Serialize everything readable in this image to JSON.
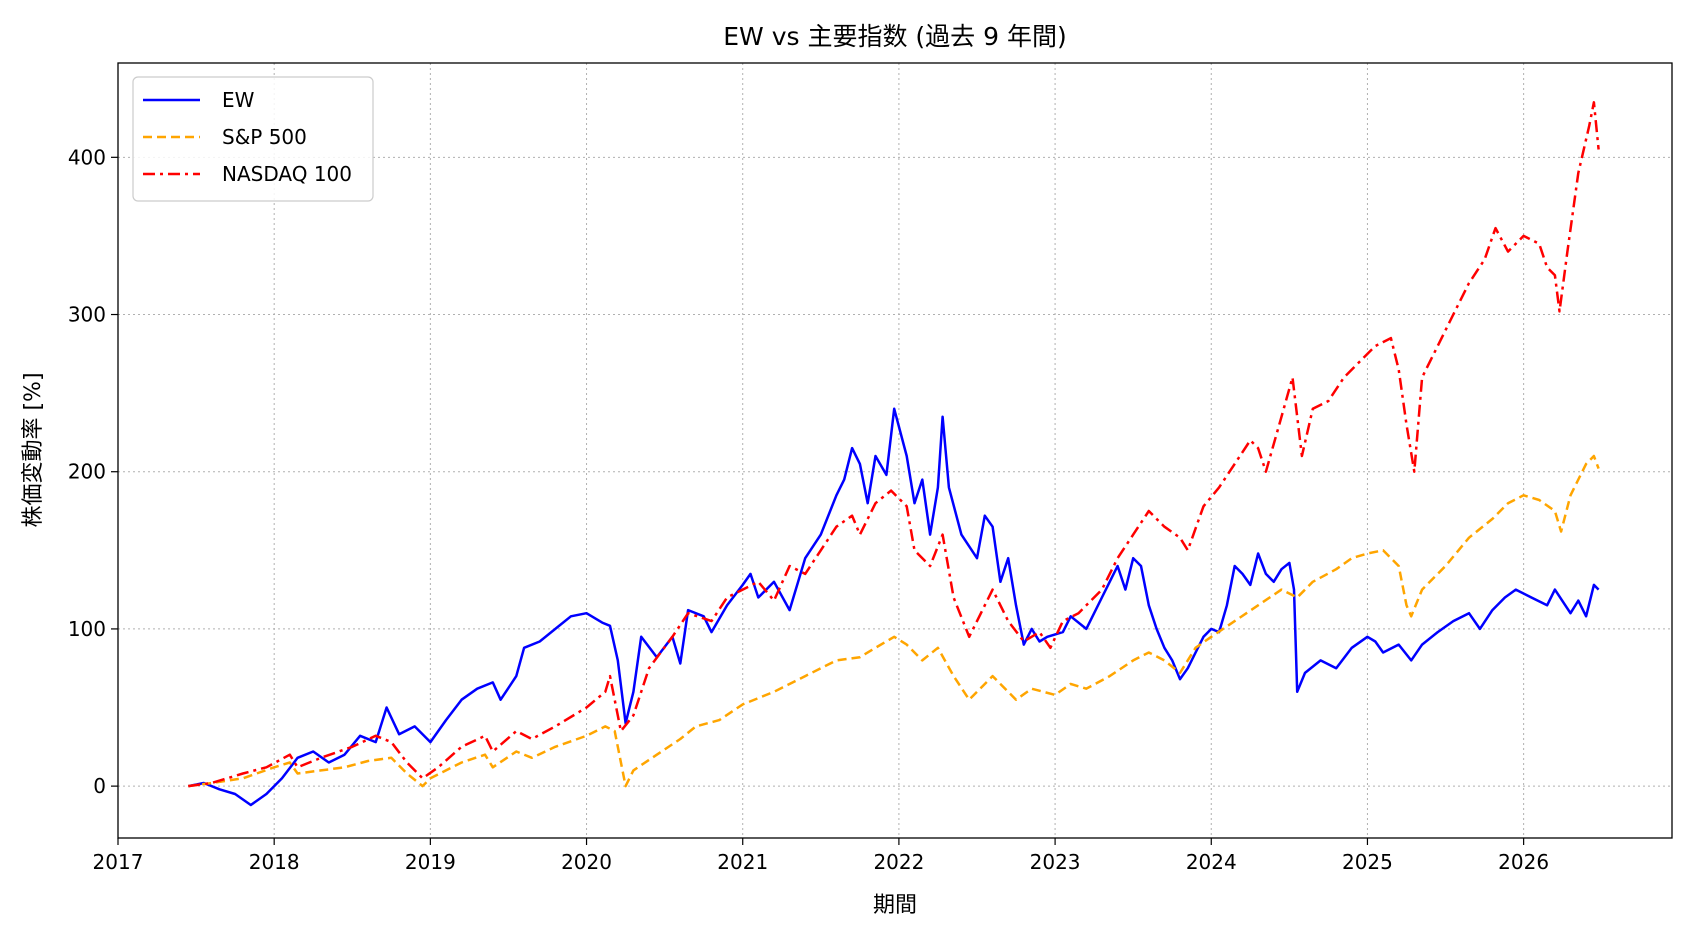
{
  "chart_data": {
    "type": "line",
    "title": "EW vs 主要指数 (過去 9 年間)",
    "xlabel": "期間",
    "ylabel": "株価変動率 [%]",
    "xlim": [
      2017.0,
      2026.95
    ],
    "ylim": [
      -33,
      460
    ],
    "x_ticks": [
      "2017",
      "2018",
      "2019",
      "2020",
      "2021",
      "2022",
      "2023",
      "2024",
      "2025",
      "2026"
    ],
    "y_ticks": [
      "0",
      "100",
      "200",
      "300",
      "400"
    ],
    "grid": true,
    "legend_position": "top-left",
    "series": [
      {
        "name": "EW",
        "color": "#0000ff",
        "style": "solid",
        "points": [
          [
            2017.45,
            0
          ],
          [
            2017.55,
            2
          ],
          [
            2017.65,
            -2
          ],
          [
            2017.75,
            -5
          ],
          [
            2017.85,
            -12
          ],
          [
            2017.95,
            -5
          ],
          [
            2018.05,
            5
          ],
          [
            2018.15,
            18
          ],
          [
            2018.25,
            22
          ],
          [
            2018.35,
            15
          ],
          [
            2018.45,
            20
          ],
          [
            2018.55,
            32
          ],
          [
            2018.65,
            28
          ],
          [
            2018.72,
            50
          ],
          [
            2018.8,
            33
          ],
          [
            2018.9,
            38
          ],
          [
            2019.0,
            28
          ],
          [
            2019.1,
            42
          ],
          [
            2019.2,
            55
          ],
          [
            2019.3,
            62
          ],
          [
            2019.4,
            66
          ],
          [
            2019.45,
            55
          ],
          [
            2019.55,
            70
          ],
          [
            2019.6,
            88
          ],
          [
            2019.7,
            92
          ],
          [
            2019.8,
            100
          ],
          [
            2019.9,
            108
          ],
          [
            2020.0,
            110
          ],
          [
            2020.1,
            104
          ],
          [
            2020.15,
            102
          ],
          [
            2020.2,
            80
          ],
          [
            2020.25,
            40
          ],
          [
            2020.3,
            60
          ],
          [
            2020.35,
            95
          ],
          [
            2020.45,
            82
          ],
          [
            2020.55,
            95
          ],
          [
            2020.6,
            78
          ],
          [
            2020.65,
            112
          ],
          [
            2020.75,
            108
          ],
          [
            2020.8,
            98
          ],
          [
            2020.9,
            115
          ],
          [
            2021.0,
            128
          ],
          [
            2021.05,
            135
          ],
          [
            2021.1,
            120
          ],
          [
            2021.2,
            130
          ],
          [
            2021.3,
            112
          ],
          [
            2021.4,
            145
          ],
          [
            2021.5,
            160
          ],
          [
            2021.6,
            185
          ],
          [
            2021.65,
            195
          ],
          [
            2021.7,
            215
          ],
          [
            2021.75,
            205
          ],
          [
            2021.8,
            180
          ],
          [
            2021.85,
            210
          ],
          [
            2021.92,
            198
          ],
          [
            2021.97,
            240
          ],
          [
            2022.05,
            210
          ],
          [
            2022.1,
            180
          ],
          [
            2022.15,
            195
          ],
          [
            2022.2,
            160
          ],
          [
            2022.25,
            190
          ],
          [
            2022.28,
            235
          ],
          [
            2022.32,
            190
          ],
          [
            2022.4,
            160
          ],
          [
            2022.5,
            145
          ],
          [
            2022.55,
            172
          ],
          [
            2022.6,
            165
          ],
          [
            2022.65,
            130
          ],
          [
            2022.7,
            145
          ],
          [
            2022.75,
            115
          ],
          [
            2022.8,
            90
          ],
          [
            2022.85,
            100
          ],
          [
            2022.9,
            92
          ],
          [
            2022.95,
            95
          ],
          [
            2023.05,
            98
          ],
          [
            2023.1,
            108
          ],
          [
            2023.2,
            100
          ],
          [
            2023.3,
            120
          ],
          [
            2023.35,
            130
          ],
          [
            2023.4,
            140
          ],
          [
            2023.45,
            125
          ],
          [
            2023.5,
            145
          ],
          [
            2023.55,
            140
          ],
          [
            2023.6,
            115
          ],
          [
            2023.65,
            100
          ],
          [
            2023.7,
            88
          ],
          [
            2023.75,
            80
          ],
          [
            2023.8,
            68
          ],
          [
            2023.85,
            75
          ],
          [
            2023.9,
            85
          ],
          [
            2023.95,
            95
          ],
          [
            2024.0,
            100
          ],
          [
            2024.05,
            98
          ],
          [
            2024.1,
            115
          ],
          [
            2024.15,
            140
          ],
          [
            2024.2,
            135
          ],
          [
            2024.25,
            128
          ],
          [
            2024.3,
            148
          ],
          [
            2024.35,
            135
          ],
          [
            2024.4,
            130
          ],
          [
            2024.45,
            138
          ],
          [
            2024.5,
            142
          ],
          [
            2024.53,
            125
          ],
          [
            2024.55,
            60
          ],
          [
            2024.6,
            72
          ],
          [
            2024.7,
            80
          ],
          [
            2024.8,
            75
          ],
          [
            2024.9,
            88
          ],
          [
            2025.0,
            95
          ],
          [
            2025.05,
            92
          ],
          [
            2025.1,
            85
          ],
          [
            2025.2,
            90
          ],
          [
            2025.28,
            80
          ],
          [
            2025.35,
            90
          ],
          [
            2025.45,
            98
          ],
          [
            2025.55,
            105
          ],
          [
            2025.65,
            110
          ],
          [
            2025.72,
            100
          ],
          [
            2025.8,
            112
          ],
          [
            2025.88,
            120
          ],
          [
            2025.95,
            125
          ],
          [
            2026.05,
            120
          ],
          [
            2026.15,
            115
          ],
          [
            2026.2,
            125
          ],
          [
            2026.3,
            110
          ],
          [
            2026.35,
            118
          ],
          [
            2026.4,
            108
          ],
          [
            2026.45,
            128
          ],
          [
            2026.48,
            125
          ]
        ]
      },
      {
        "name": "S&P 500",
        "color": "#ffa500",
        "style": "dashed",
        "points": [
          [
            2017.45,
            0
          ],
          [
            2017.6,
            2
          ],
          [
            2017.8,
            5
          ],
          [
            2018.0,
            12
          ],
          [
            2018.1,
            15
          ],
          [
            2018.15,
            8
          ],
          [
            2018.3,
            10
          ],
          [
            2018.45,
            12
          ],
          [
            2018.6,
            16
          ],
          [
            2018.75,
            18
          ],
          [
            2018.85,
            8
          ],
          [
            2018.95,
            0
          ],
          [
            2019.0,
            5
          ],
          [
            2019.2,
            15
          ],
          [
            2019.35,
            20
          ],
          [
            2019.4,
            12
          ],
          [
            2019.55,
            22
          ],
          [
            2019.65,
            18
          ],
          [
            2019.8,
            25
          ],
          [
            2020.0,
            32
          ],
          [
            2020.12,
            38
          ],
          [
            2020.18,
            35
          ],
          [
            2020.25,
            0
          ],
          [
            2020.3,
            10
          ],
          [
            2020.45,
            20
          ],
          [
            2020.6,
            30
          ],
          [
            2020.7,
            38
          ],
          [
            2020.85,
            42
          ],
          [
            2021.0,
            52
          ],
          [
            2021.2,
            60
          ],
          [
            2021.4,
            70
          ],
          [
            2021.6,
            80
          ],
          [
            2021.75,
            82
          ],
          [
            2021.85,
            88
          ],
          [
            2021.97,
            95
          ],
          [
            2022.05,
            90
          ],
          [
            2022.15,
            80
          ],
          [
            2022.25,
            88
          ],
          [
            2022.35,
            70
          ],
          [
            2022.45,
            55
          ],
          [
            2022.6,
            70
          ],
          [
            2022.75,
            55
          ],
          [
            2022.85,
            62
          ],
          [
            2023.0,
            58
          ],
          [
            2023.1,
            65
          ],
          [
            2023.2,
            62
          ],
          [
            2023.35,
            70
          ],
          [
            2023.5,
            80
          ],
          [
            2023.6,
            85
          ],
          [
            2023.7,
            80
          ],
          [
            2023.8,
            72
          ],
          [
            2023.9,
            88
          ],
          [
            2024.0,
            95
          ],
          [
            2024.15,
            105
          ],
          [
            2024.3,
            115
          ],
          [
            2024.45,
            125
          ],
          [
            2024.55,
            120
          ],
          [
            2024.65,
            130
          ],
          [
            2024.8,
            138
          ],
          [
            2024.9,
            145
          ],
          [
            2025.0,
            148
          ],
          [
            2025.1,
            150
          ],
          [
            2025.2,
            140
          ],
          [
            2025.25,
            115
          ],
          [
            2025.28,
            108
          ],
          [
            2025.35,
            125
          ],
          [
            2025.5,
            140
          ],
          [
            2025.65,
            158
          ],
          [
            2025.8,
            170
          ],
          [
            2025.9,
            180
          ],
          [
            2026.0,
            185
          ],
          [
            2026.1,
            182
          ],
          [
            2026.2,
            175
          ],
          [
            2026.24,
            162
          ],
          [
            2026.3,
            185
          ],
          [
            2026.4,
            205
          ],
          [
            2026.45,
            210
          ],
          [
            2026.48,
            202
          ]
        ]
      },
      {
        "name": "NASDAQ 100",
        "color": "#ff0000",
        "style": "dashdot",
        "points": [
          [
            2017.45,
            0
          ],
          [
            2017.6,
            2
          ],
          [
            2017.8,
            8
          ],
          [
            2017.95,
            12
          ],
          [
            2018.1,
            20
          ],
          [
            2018.15,
            12
          ],
          [
            2018.3,
            18
          ],
          [
            2018.5,
            25
          ],
          [
            2018.65,
            32
          ],
          [
            2018.75,
            28
          ],
          [
            2018.85,
            15
          ],
          [
            2018.95,
            5
          ],
          [
            2019.05,
            12
          ],
          [
            2019.2,
            25
          ],
          [
            2019.35,
            32
          ],
          [
            2019.4,
            22
          ],
          [
            2019.55,
            35
          ],
          [
            2019.65,
            30
          ],
          [
            2019.8,
            38
          ],
          [
            2020.0,
            50
          ],
          [
            2020.12,
            60
          ],
          [
            2020.15,
            70
          ],
          [
            2020.22,
            35
          ],
          [
            2020.3,
            45
          ],
          [
            2020.4,
            75
          ],
          [
            2020.55,
            95
          ],
          [
            2020.65,
            110
          ],
          [
            2020.8,
            105
          ],
          [
            2020.9,
            120
          ],
          [
            2021.0,
            125
          ],
          [
            2021.1,
            130
          ],
          [
            2021.2,
            118
          ],
          [
            2021.3,
            140
          ],
          [
            2021.4,
            135
          ],
          [
            2021.5,
            150
          ],
          [
            2021.6,
            165
          ],
          [
            2021.7,
            172
          ],
          [
            2021.75,
            160
          ],
          [
            2021.85,
            180
          ],
          [
            2021.95,
            188
          ],
          [
            2022.05,
            178
          ],
          [
            2022.1,
            150
          ],
          [
            2022.2,
            140
          ],
          [
            2022.28,
            160
          ],
          [
            2022.35,
            120
          ],
          [
            2022.45,
            95
          ],
          [
            2022.6,
            125
          ],
          [
            2022.7,
            105
          ],
          [
            2022.8,
            92
          ],
          [
            2022.9,
            98
          ],
          [
            2022.97,
            88
          ],
          [
            2023.05,
            105
          ],
          [
            2023.15,
            110
          ],
          [
            2023.3,
            125
          ],
          [
            2023.4,
            145
          ],
          [
            2023.5,
            160
          ],
          [
            2023.6,
            175
          ],
          [
            2023.7,
            165
          ],
          [
            2023.8,
            158
          ],
          [
            2023.85,
            150
          ],
          [
            2023.95,
            178
          ],
          [
            2024.05,
            190
          ],
          [
            2024.15,
            205
          ],
          [
            2024.25,
            220
          ],
          [
            2024.3,
            215
          ],
          [
            2024.35,
            200
          ],
          [
            2024.45,
            235
          ],
          [
            2024.52,
            260
          ],
          [
            2024.58,
            210
          ],
          [
            2024.65,
            240
          ],
          [
            2024.75,
            245
          ],
          [
            2024.85,
            260
          ],
          [
            2024.95,
            270
          ],
          [
            2025.05,
            280
          ],
          [
            2025.15,
            285
          ],
          [
            2025.2,
            265
          ],
          [
            2025.25,
            230
          ],
          [
            2025.3,
            200
          ],
          [
            2025.35,
            260
          ],
          [
            2025.45,
            280
          ],
          [
            2025.55,
            300
          ],
          [
            2025.65,
            320
          ],
          [
            2025.75,
            335
          ],
          [
            2025.82,
            355
          ],
          [
            2025.9,
            340
          ],
          [
            2026.0,
            350
          ],
          [
            2026.1,
            345
          ],
          [
            2026.15,
            330
          ],
          [
            2026.2,
            325
          ],
          [
            2026.23,
            302
          ],
          [
            2026.28,
            340
          ],
          [
            2026.35,
            390
          ],
          [
            2026.42,
            420
          ],
          [
            2026.45,
            435
          ],
          [
            2026.48,
            405
          ]
        ]
      }
    ]
  }
}
